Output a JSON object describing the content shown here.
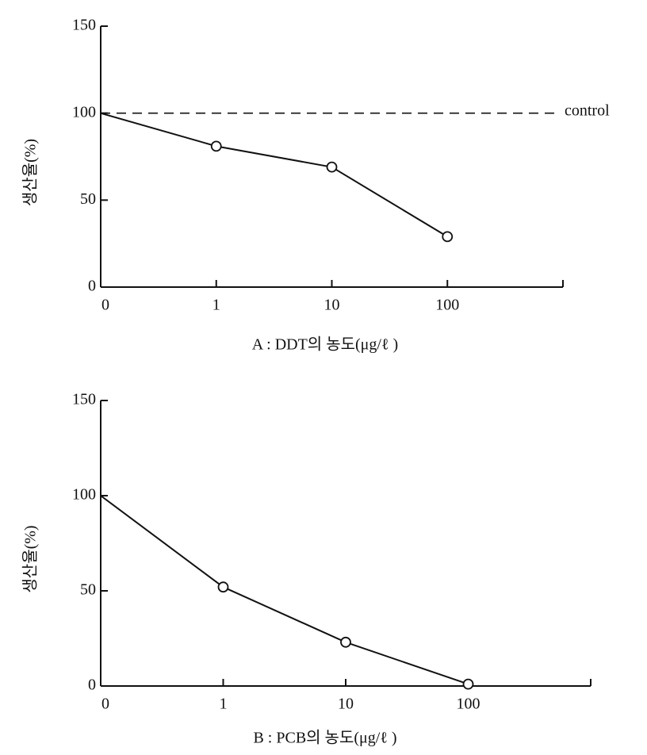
{
  "chart_data": [
    {
      "type": "line",
      "categories": [
        "0",
        "1",
        "10",
        "100"
      ],
      "values": [
        100,
        81,
        69,
        29
      ],
      "color": "#111111",
      "ylim": [
        0,
        150
      ],
      "yticks": [
        0,
        50,
        100,
        150
      ],
      "reference": {
        "value": 100,
        "label": "control"
      },
      "ylabel": "생산율(%)",
      "xlabel": "A : DDT의 농도(μg/ℓ )"
    },
    {
      "type": "line",
      "categories": [
        "0",
        "1",
        "10",
        "100"
      ],
      "values": [
        100,
        52,
        23,
        1
      ],
      "color": "#111111",
      "ylim": [
        0,
        150
      ],
      "yticks": [
        0,
        50,
        100,
        150
      ],
      "ylabel": "생산율(%)",
      "xlabel": "B : PCB의 농도(μg/ℓ )"
    }
  ]
}
